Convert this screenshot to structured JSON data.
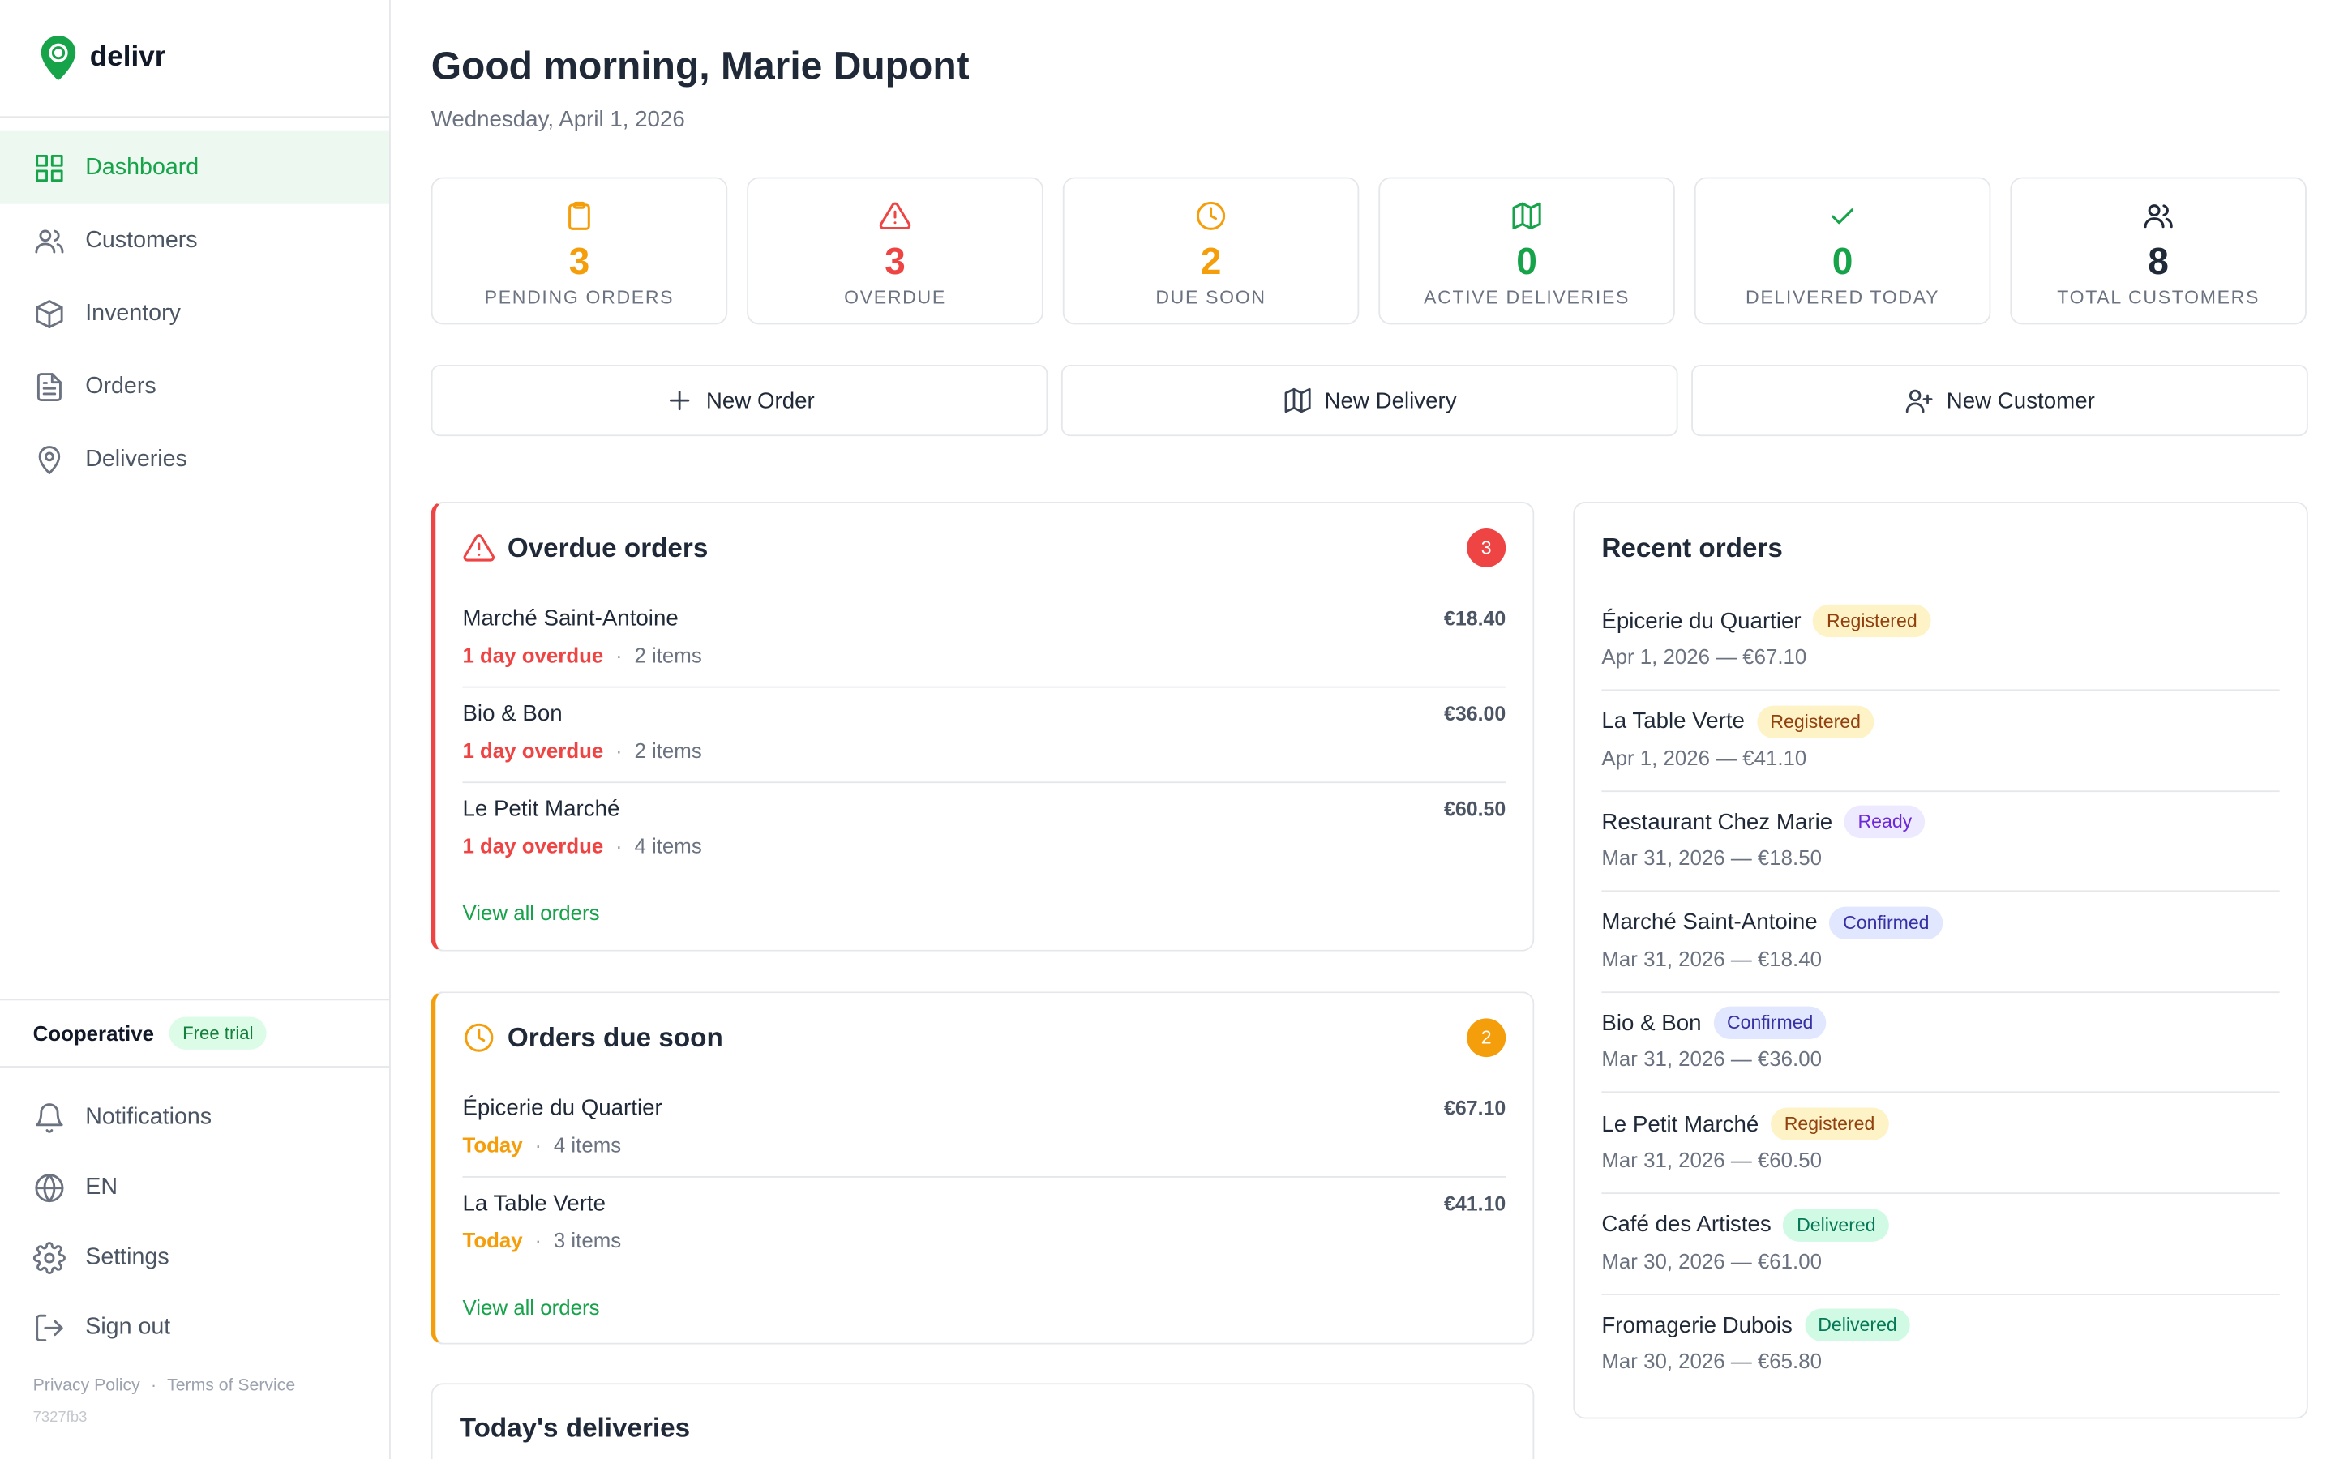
{
  "brand": {
    "name": "delivr",
    "accent": "#16a34a"
  },
  "nav": [
    {
      "label": "Dashboard",
      "icon": "grid-icon",
      "active": true
    },
    {
      "label": "Customers",
      "icon": "users-icon"
    },
    {
      "label": "Inventory",
      "icon": "box-icon"
    },
    {
      "label": "Orders",
      "icon": "file-icon"
    },
    {
      "label": "Deliveries",
      "icon": "map-pin-icon"
    }
  ],
  "plan": {
    "name": "Cooperative",
    "badge": "Free trial"
  },
  "bottom_nav": [
    {
      "label": "Notifications",
      "icon": "bell-icon"
    },
    {
      "label": "EN",
      "icon": "globe-icon"
    },
    {
      "label": "Settings",
      "icon": "gear-icon"
    },
    {
      "label": "Sign out",
      "icon": "sign-out-icon"
    }
  ],
  "legal": {
    "privacy": "Privacy Policy",
    "sep": "·",
    "terms": "Terms of Service",
    "build": "7327fb3"
  },
  "header": {
    "greeting": "Good morning, Marie Dupont",
    "date": "Wednesday, April 1, 2026"
  },
  "stats": [
    {
      "value": "3",
      "label": "PENDING ORDERS",
      "color": "#f59e0b",
      "icon": "clipboard-icon"
    },
    {
      "value": "3",
      "label": "OVERDUE",
      "color": "#ef4444",
      "icon": "warning-icon"
    },
    {
      "value": "2",
      "label": "DUE SOON",
      "color": "#f59e0b",
      "icon": "clock-icon"
    },
    {
      "value": "0",
      "label": "ACTIVE DELIVERIES",
      "color": "#16a34a",
      "icon": "map-icon"
    },
    {
      "value": "0",
      "label": "DELIVERED TODAY",
      "color": "#16a34a",
      "icon": "check-icon"
    },
    {
      "value": "8",
      "label": "TOTAL CUSTOMERS",
      "color": "#1f2937",
      "icon": "users-icon"
    }
  ],
  "actions": [
    {
      "label": "New Order",
      "icon": "plus-icon"
    },
    {
      "label": "New Delivery",
      "icon": "map-icon"
    },
    {
      "label": "New Customer",
      "icon": "user-plus-icon"
    }
  ],
  "overdue": {
    "title": "Overdue orders",
    "count": "3",
    "rows": [
      {
        "name": "Marché Saint-Antoine",
        "amount": "€18.40",
        "status": "1 day overdue",
        "items": "2 items"
      },
      {
        "name": "Bio & Bon",
        "amount": "€36.00",
        "status": "1 day overdue",
        "items": "2 items"
      },
      {
        "name": "Le Petit Marché",
        "amount": "€60.50",
        "status": "1 day overdue",
        "items": "4 items"
      }
    ],
    "view_all": "View all orders"
  },
  "due_soon": {
    "title": "Orders due soon",
    "count": "2",
    "rows": [
      {
        "name": "Épicerie du Quartier",
        "amount": "€67.10",
        "status": "Today",
        "items": "4 items"
      },
      {
        "name": "La Table Verte",
        "amount": "€41.10",
        "status": "Today",
        "items": "3 items"
      }
    ],
    "view_all": "View all orders"
  },
  "deliveries": {
    "title": "Today's deliveries"
  },
  "recent": {
    "title": "Recent orders",
    "rows": [
      {
        "name": "Épicerie du Quartier",
        "status": "Registered",
        "meta": "Apr 1, 2026 — €67.10"
      },
      {
        "name": "La Table Verte",
        "status": "Registered",
        "meta": "Apr 1, 2026 — €41.10"
      },
      {
        "name": "Restaurant Chez Marie",
        "status": "Ready",
        "meta": "Mar 31, 2026 — €18.50"
      },
      {
        "name": "Marché Saint-Antoine",
        "status": "Confirmed",
        "meta": "Mar 31, 2026 — €18.40"
      },
      {
        "name": "Bio & Bon",
        "status": "Confirmed",
        "meta": "Mar 31, 2026 — €36.00"
      },
      {
        "name": "Le Petit Marché",
        "status": "Registered",
        "meta": "Mar 31, 2026 — €60.50"
      },
      {
        "name": "Café des Artistes",
        "status": "Delivered",
        "meta": "Mar 30, 2026 — €61.00"
      },
      {
        "name": "Fromagerie Dubois",
        "status": "Delivered",
        "meta": "Mar 30, 2026 — €65.80"
      }
    ]
  },
  "status_colors": {
    "Registered": {
      "bg": "#fef3c7",
      "fg": "#92400e"
    },
    "Ready": {
      "bg": "#ede9fe",
      "fg": "#6d28d9"
    },
    "Confirmed": {
      "bg": "#e0e7ff",
      "fg": "#3730a3"
    },
    "Delivered": {
      "bg": "#d1fae5",
      "fg": "#047857"
    }
  }
}
